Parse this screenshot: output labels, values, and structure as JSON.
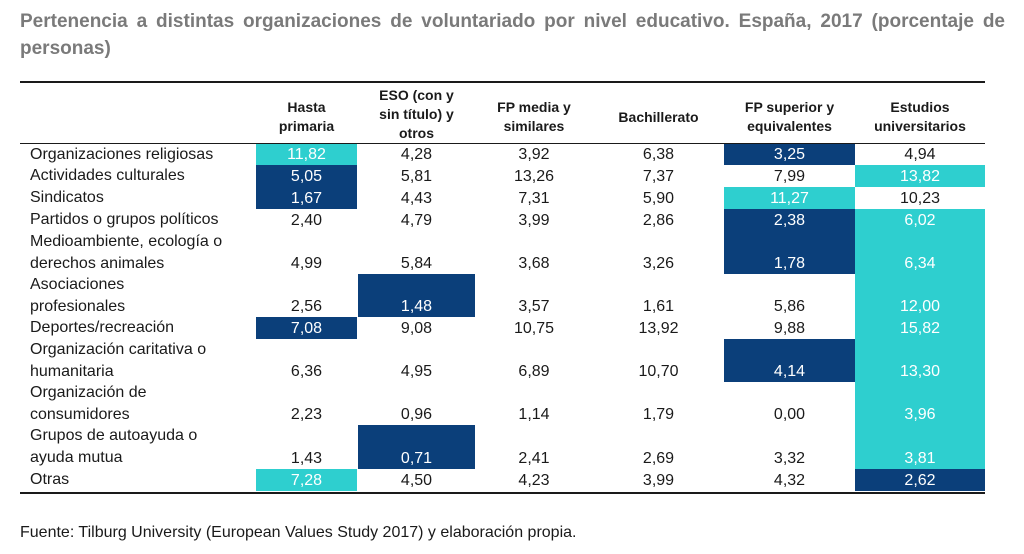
{
  "title": "Pertenencia a distintas organizaciones de voluntariado por nivel educativo. España, 2017 (porcentaje de personas)",
  "source": "Fuente: Tilburg University (European Values Study 2017) y elaboración propia.",
  "highlight_colors": {
    "light": "#2ecfcf",
    "dark": "#0b3f7a"
  },
  "chart_data": {
    "type": "table",
    "title": "Pertenencia a distintas organizaciones de voluntariado por nivel educativo. España, 2017 (porcentaje de personas)",
    "columns": [
      "Hasta primaria",
      "ESO (con y sin título) y otros",
      "FP media y similares",
      "Bachillerato",
      "FP superior y equivalentes",
      "Estudios universitarios"
    ],
    "column_lines": [
      [
        "Hasta",
        "primaria"
      ],
      [
        "ESO (con y",
        "sin título) y",
        "otros"
      ],
      [
        "FP media y",
        "similares"
      ],
      [
        "Bachillerato"
      ],
      [
        "FP superior y",
        "equivalentes"
      ],
      [
        "Estudios",
        "universitarios"
      ]
    ],
    "rows": [
      {
        "label_lines": [
          "Organizaciones religiosas"
        ],
        "values": [
          "11,82",
          "4,28",
          "3,92",
          "6,38",
          "3,25",
          "4,94"
        ],
        "highlight": [
          "light",
          null,
          null,
          null,
          "dark",
          null
        ]
      },
      {
        "label_lines": [
          "Actividades culturales"
        ],
        "values": [
          "5,05",
          "5,81",
          "13,26",
          "7,37",
          "7,99",
          "13,82"
        ],
        "highlight": [
          "dark",
          null,
          null,
          null,
          null,
          "light"
        ]
      },
      {
        "label_lines": [
          "Sindicatos"
        ],
        "values": [
          "1,67",
          "4,43",
          "7,31",
          "5,90",
          "11,27",
          "10,23"
        ],
        "highlight": [
          "dark",
          null,
          null,
          null,
          "light",
          null
        ]
      },
      {
        "label_lines": [
          "Partidos o grupos políticos"
        ],
        "values": [
          "2,40",
          "4,79",
          "3,99",
          "2,86",
          "2,38",
          "6,02"
        ],
        "highlight": [
          null,
          null,
          null,
          null,
          "dark",
          "light"
        ]
      },
      {
        "label_lines": [
          "Medioambiente, ecología o",
          "derechos animales"
        ],
        "values": [
          "4,99",
          "5,84",
          "3,68",
          "3,26",
          "1,78",
          "6,34"
        ],
        "highlight": [
          null,
          null,
          null,
          null,
          "dark",
          "light"
        ]
      },
      {
        "label_lines": [
          "Asociaciones",
          "profesionales"
        ],
        "values": [
          "2,56",
          "1,48",
          "3,57",
          "1,61",
          "5,86",
          "12,00"
        ],
        "highlight": [
          null,
          "dark",
          null,
          null,
          null,
          "light"
        ]
      },
      {
        "label_lines": [
          "Deportes/recreación"
        ],
        "values": [
          "7,08",
          "9,08",
          "10,75",
          "13,92",
          "9,88",
          "15,82"
        ],
        "highlight": [
          "dark",
          null,
          null,
          null,
          null,
          "light"
        ]
      },
      {
        "label_lines": [
          "Organización caritativa o",
          "humanitaria"
        ],
        "values": [
          "6,36",
          "4,95",
          "6,89",
          "10,70",
          "4,14",
          "13,30"
        ],
        "highlight": [
          null,
          null,
          null,
          null,
          "dark",
          "light"
        ]
      },
      {
        "label_lines": [
          "Organización de",
          "consumidores"
        ],
        "values": [
          "2,23",
          "0,96",
          "1,14",
          "1,79",
          "0,00",
          "3,96"
        ],
        "highlight": [
          null,
          null,
          null,
          null,
          null,
          "light"
        ]
      },
      {
        "label_lines": [
          "Grupos de autoayuda o",
          "ayuda mutua"
        ],
        "values": [
          "1,43",
          "0,71",
          "2,41",
          "2,69",
          "3,32",
          "3,81"
        ],
        "highlight": [
          null,
          "dark",
          null,
          null,
          null,
          "light"
        ]
      },
      {
        "label_lines": [
          "Otras"
        ],
        "values": [
          "7,28",
          "4,50",
          "4,23",
          "3,99",
          "4,32",
          "2,62"
        ],
        "highlight": [
          "light",
          null,
          null,
          null,
          null,
          "dark"
        ]
      }
    ]
  }
}
